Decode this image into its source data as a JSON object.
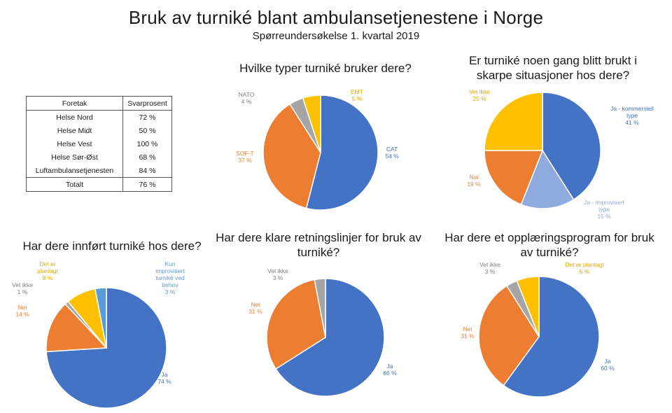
{
  "header": {
    "title": "Bruk av turniké blant ambulansetjenestene i Norge",
    "subtitle": "Spørreundersøkelse 1. kvartal 2019"
  },
  "table": {
    "headers": [
      "Foretak",
      "Svarprosent"
    ],
    "rows": [
      [
        "Helse Nord",
        "72 %"
      ],
      [
        "Helse Midt",
        "50 %"
      ],
      [
        "Helse Vest",
        "100 %"
      ],
      [
        "Helse Sør-Øst",
        "68 %"
      ],
      [
        "Luftambulansetjenesten",
        "84 %"
      ]
    ],
    "total": [
      "Totalt",
      "76 %"
    ]
  },
  "chart_data": [
    {
      "type": "pie",
      "title": "Hvilke typer turniké bruker dere?",
      "slices": [
        {
          "label": "CAT",
          "value": 54,
          "pct": "54 %",
          "color": "#4472C4"
        },
        {
          "label": "SOF-T",
          "value": 37,
          "pct": "37 %",
          "color": "#ED7D31"
        },
        {
          "label": "NATO",
          "value": 4,
          "pct": "4 %",
          "color": "#A5A5A5"
        },
        {
          "label": "EMT",
          "value": 5,
          "pct": "5 %",
          "color": "#FFC000"
        }
      ]
    },
    {
      "type": "pie",
      "title": "Er turniké noen gang blitt brukt i skarpe situasjoner hos dere?",
      "slices": [
        {
          "label": "Ja - kommersiell type",
          "value": 41,
          "pct": "41 %",
          "color": "#4472C4"
        },
        {
          "label": "Ja - improvisert type",
          "value": 15,
          "pct": "15 %",
          "color": "#8FAADC"
        },
        {
          "label": "Nei",
          "value": 19,
          "pct": "19 %",
          "color": "#ED7D31"
        },
        {
          "label": "Vet ikke",
          "value": 25,
          "pct": "25 %",
          "color": "#FFC000"
        }
      ]
    },
    {
      "type": "pie",
      "title": "Har dere innført turniké hos dere?",
      "slices": [
        {
          "label": "Ja",
          "value": 74,
          "pct": "74 %",
          "color": "#4472C4"
        },
        {
          "label": "Nei",
          "value": 14,
          "pct": "14 %",
          "color": "#ED7D31"
        },
        {
          "label": "Vet ikke",
          "value": 1,
          "pct": "1 %",
          "color": "#A5A5A5"
        },
        {
          "label": "Det er planlagt",
          "value": 8,
          "pct": "8 %",
          "color": "#FFC000"
        },
        {
          "label": "Kun improvisert turniké ved behov",
          "value": 3,
          "pct": "3 %",
          "color": "#5B9BD5"
        }
      ]
    },
    {
      "type": "pie",
      "title": "Har dere klare retningslinjer for bruk av turniké?",
      "slices": [
        {
          "label": "Ja",
          "value": 66,
          "pct": "66 %",
          "color": "#4472C4"
        },
        {
          "label": "Nei",
          "value": 31,
          "pct": "31 %",
          "color": "#ED7D31"
        },
        {
          "label": "Vet ikke",
          "value": 3,
          "pct": "3 %",
          "color": "#A5A5A5"
        }
      ]
    },
    {
      "type": "pie",
      "title": "Har dere et opplæringsprogram for bruk av turniké?",
      "slices": [
        {
          "label": "Ja",
          "value": 60,
          "pct": "60 %",
          "color": "#4472C4"
        },
        {
          "label": "Nei",
          "value": 31,
          "pct": "31 %",
          "color": "#ED7D31"
        },
        {
          "label": "Vet ikke",
          "value": 3,
          "pct": "3 %",
          "color": "#A5A5A5"
        },
        {
          "label": "Det er planlagt",
          "value": 6,
          "pct": "6 %",
          "color": "#FFC000"
        }
      ]
    }
  ]
}
